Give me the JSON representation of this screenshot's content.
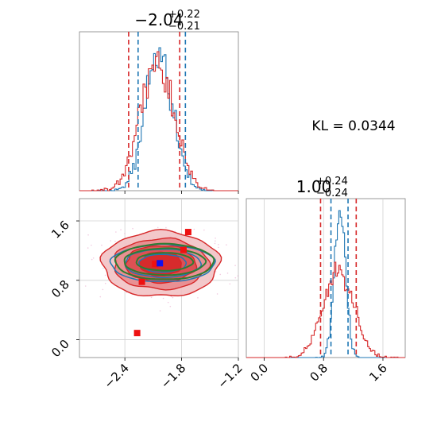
{
  "colors": {
    "blue": "#1f77b4",
    "red": "#d62728",
    "green": "#2e7d32",
    "grid": "#d0d0d0",
    "axis": "#808080"
  },
  "annotation": "KL = 0.0344",
  "chart_data": [
    {
      "type": "histogram",
      "panel": "top-left",
      "title": {
        "value": "−2.04",
        "sup": "+0.22",
        "sub": "−0.21"
      },
      "xlim": [
        -2.88,
        -1.2
      ],
      "quantiles_blue": [
        -2.26,
        -2.04,
        -1.76
      ],
      "quantiles_red": [
        -2.36,
        -2.04,
        -1.82
      ],
      "series": [
        {
          "color": "blue",
          "mean": -2.04,
          "sd": 0.145
        },
        {
          "color": "red",
          "mean": -2.06,
          "sd": 0.175
        }
      ],
      "grid": false
    },
    {
      "type": "contour",
      "panel": "bottom-left",
      "xlim": [
        -2.88,
        -1.2
      ],
      "ylim": [
        -0.24,
        1.9
      ],
      "xticks": [
        "−2.4",
        "−1.8",
        "−1.2"
      ],
      "yticks": [
        "0.0",
        "0.8",
        "1.6"
      ],
      "xtick_values": [
        -2.4,
        -1.8,
        -1.2
      ],
      "ytick_values": [
        0.0,
        0.8,
        1.6
      ],
      "grid": true,
      "red_contours": {
        "cx": -2.02,
        "cy": 1.02,
        "rx": [
          0.62,
          0.5,
          0.37,
          0.22
        ],
        "ry": [
          0.44,
          0.34,
          0.25,
          0.16
        ]
      },
      "blue_contours": {
        "cx": -2.0,
        "cy": 1.03,
        "rx": [
          0.55,
          0.4,
          0.25
        ],
        "ry": [
          0.25,
          0.19,
          0.12
        ]
      },
      "green_contours": {
        "cx": -1.98,
        "cy": 1.05,
        "rx": [
          0.52,
          0.43,
          0.3
        ],
        "ry": [
          0.24,
          0.18,
          0.12
        ]
      },
      "red_markers": [
        {
          "x": -2.27,
          "y": 0.09
        },
        {
          "x": -1.73,
          "y": 1.45
        },
        {
          "x": -2.22,
          "y": 0.78
        },
        {
          "x": -2.08,
          "y": 1.02
        },
        {
          "x": -1.78,
          "y": 1.21
        }
      ],
      "blue_marker": {
        "x": -2.03,
        "y": 1.03
      }
    },
    {
      "type": "histogram",
      "panel": "bottom-right",
      "title": {
        "value": "1.00",
        "sup": "+0.24",
        "sub": "−0.24"
      },
      "xlim": [
        -0.24,
        1.9
      ],
      "xticks": [
        "0.0",
        "0.8",
        "1.6"
      ],
      "xtick_values": [
        0.0,
        0.8,
        1.6
      ],
      "quantiles_blue": [
        0.9,
        1.0,
        1.13
      ],
      "quantiles_red": [
        0.76,
        1.0,
        1.24
      ],
      "series": [
        {
          "color": "blue",
          "mean": 1.02,
          "sd": 0.075
        },
        {
          "color": "red",
          "mean": 1.0,
          "sd": 0.2
        }
      ],
      "grid": true
    }
  ]
}
